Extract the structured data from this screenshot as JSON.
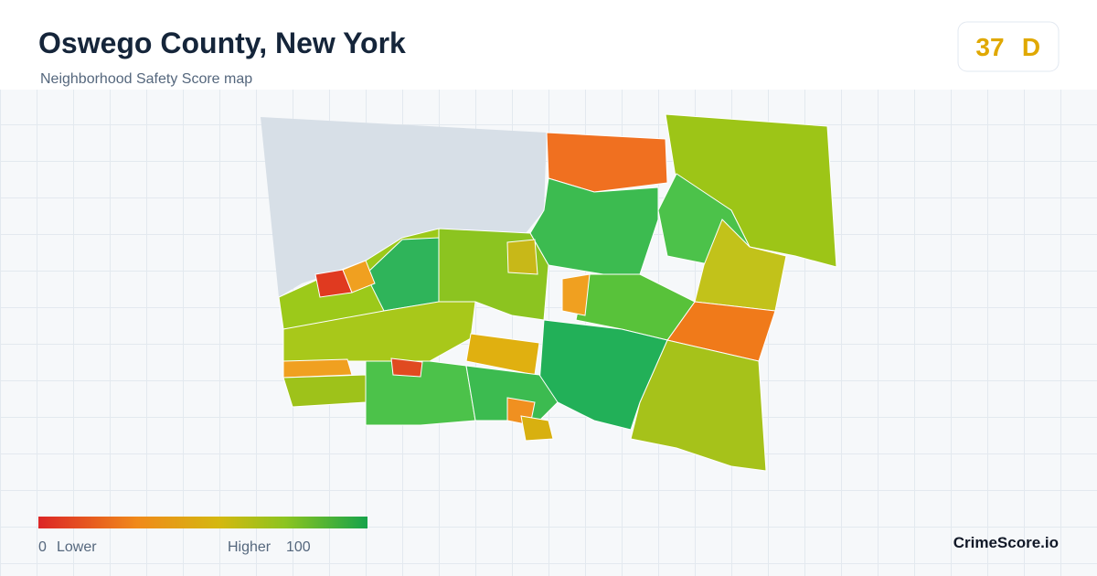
{
  "header": {
    "title": "Oswego County, New York",
    "subtitle": "Neighborhood Safety Score map"
  },
  "score": {
    "value": 37,
    "grade": "D"
  },
  "legend": {
    "min": 0,
    "min_label": "Lower",
    "max_label": "Higher",
    "max": 100
  },
  "brand": "CrimeScore.io"
}
